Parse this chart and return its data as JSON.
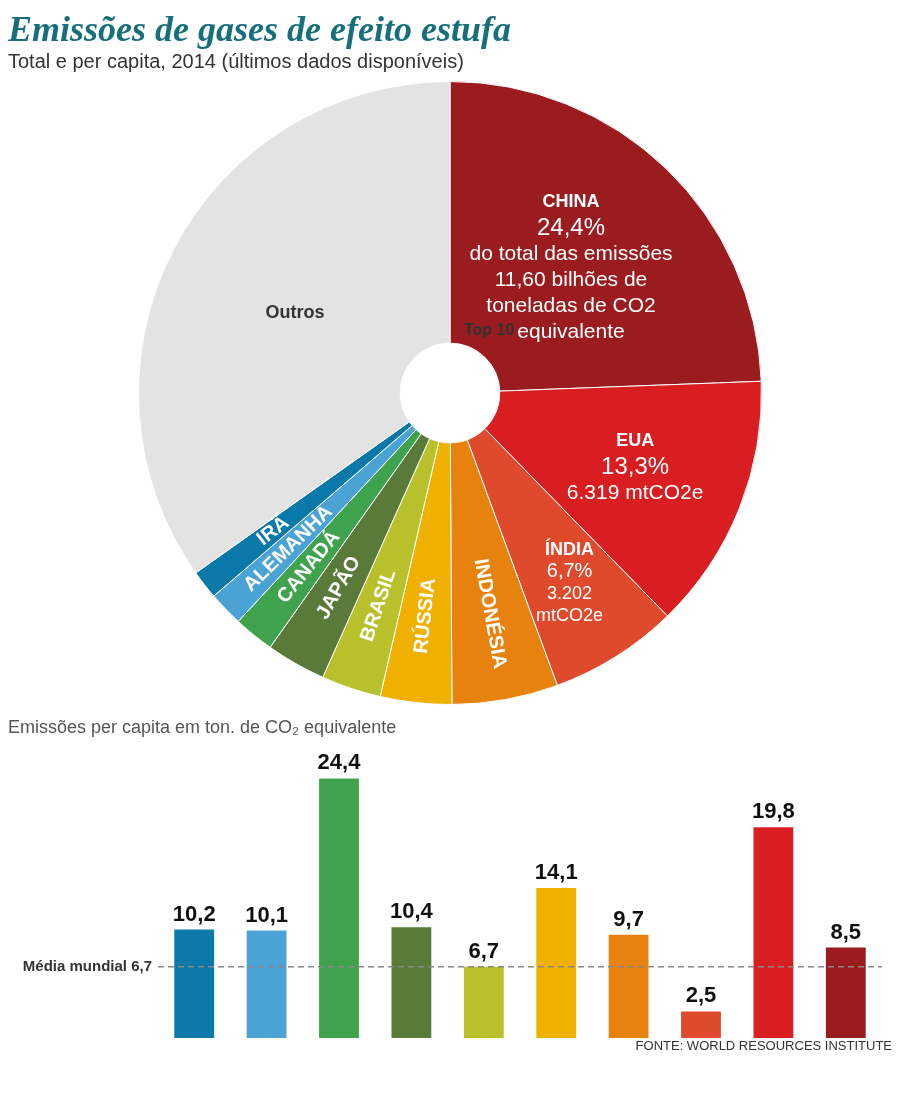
{
  "chart_data": [
    {
      "type": "donut",
      "title": "Emissões de gases de efeito estufa",
      "subtitle": "Total e per capita, 2014 (últimos dados disponíveis)",
      "categories": [
        "CHINA",
        "EUA",
        "ÍNDIA",
        "INDONÉSIA",
        "RÚSSIA",
        "BRASIL",
        "JAPÃO",
        "CANADÁ",
        "ALEMANHA",
        "IRÃ",
        "Outros"
      ],
      "values": [
        24.4,
        13.3,
        6.7,
        5.5,
        3.7,
        3.1,
        3.1,
        2.1,
        1.8,
        1.5,
        34.8
      ],
      "colors": [
        "#9b1c1f",
        "#d81e21",
        "#df4a2d",
        "#e8820f",
        "#f0b000",
        "#b8c12b",
        "#5a7a3a",
        "#3fa34d",
        "#4aa3d4",
        "#0a78a8",
        "#e3e3e3"
      ],
      "value_labels": [
        "24,4%",
        "13,3%",
        "6,7%",
        null,
        null,
        null,
        null,
        null,
        null,
        null,
        null
      ],
      "annotations": [
        {
          "text": "do total das emissões",
          "x": "CHINA"
        },
        {
          "text": "11,60 bilhões de toneladas de CO2 equivalente",
          "x": "CHINA"
        },
        {
          "text": "6.319 mtCO2e",
          "x": "EUA"
        },
        {
          "text": "3.202 mtCO2e",
          "x": "ÍNDIA"
        },
        "Top 10"
      ],
      "legend": false
    },
    {
      "type": "bar",
      "title": "Emissões per capita em ton. de CO₂ equivalente",
      "categories": [
        null,
        null,
        null,
        null,
        null,
        null,
        null,
        null,
        null,
        null
      ],
      "values": [
        10.2,
        10.1,
        24.4,
        10.4,
        6.7,
        14.1,
        9.7,
        2.5,
        19.8,
        8.5
      ],
      "colors": [
        "#0a78a8",
        "#4aa3d4",
        "#3fa34d",
        "#5a7a3a",
        "#b8c12b",
        "#f0b000",
        "#e8820f",
        "#df4a2d",
        "#d81e21",
        "#9b1c1f"
      ],
      "value_labels": [
        "10,2",
        "10,1",
        "24,4",
        "10,4",
        "6,7",
        "14,1",
        "9,7",
        "2,5",
        "19,8",
        "8,5"
      ],
      "ref_lines": [
        {
          "axis": "y",
          "value": 6.7,
          "label": "Média mundial 6,7",
          "color": "#888888",
          "line_style": "dashed"
        }
      ],
      "legend": false,
      "annotations": [
        "FONTE: WORLD RESOURCES INSTITUTE"
      ]
    }
  ]
}
